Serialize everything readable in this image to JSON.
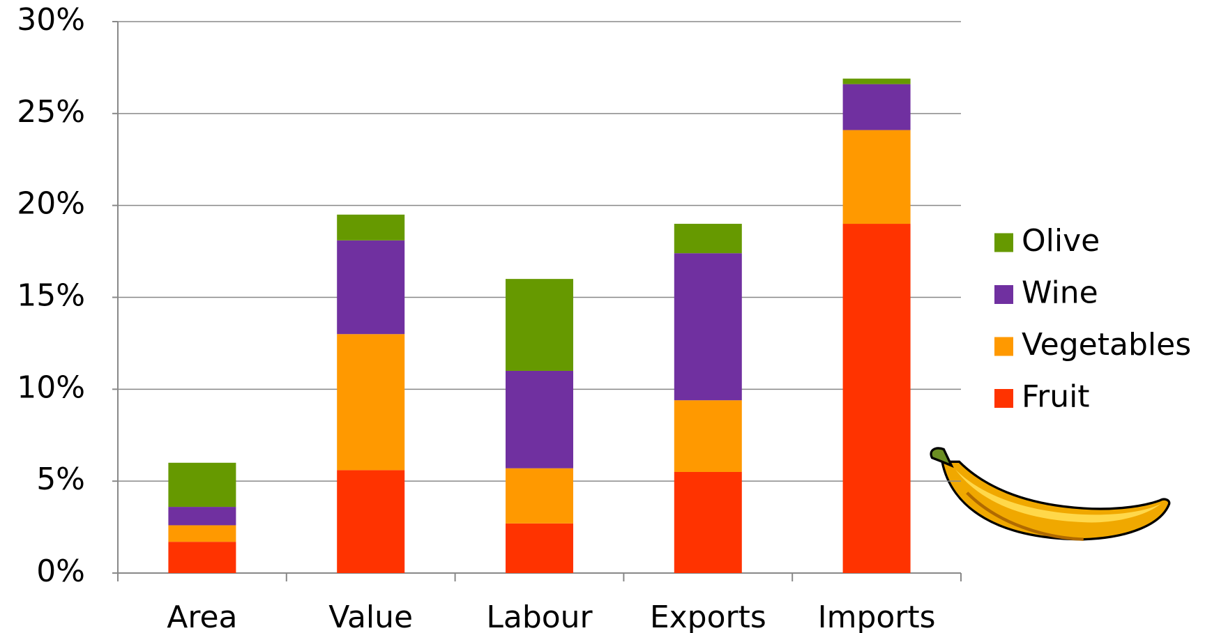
{
  "chart_data": {
    "type": "stacked_bar",
    "categories": [
      "Area",
      "Value",
      "Labour",
      "Exports",
      "Imports"
    ],
    "series": [
      {
        "name": "Fruit",
        "color": "#ff3300",
        "values": [
          1.7,
          5.6,
          2.7,
          5.5,
          19.0
        ]
      },
      {
        "name": "Vegetables",
        "color": "#ff9900",
        "values": [
          0.9,
          7.4,
          3.0,
          3.9,
          5.1
        ]
      },
      {
        "name": "Wine",
        "color": "#7030a0",
        "values": [
          1.0,
          5.1,
          5.3,
          8.0,
          2.5
        ]
      },
      {
        "name": "Olive",
        "color": "#669900",
        "values": [
          2.4,
          1.4,
          5.0,
          1.6,
          0.3
        ]
      }
    ],
    "ylim": [
      0,
      30
    ],
    "yticks": [
      {
        "value": 0,
        "label": "0%"
      },
      {
        "value": 5,
        "label": "5%"
      },
      {
        "value": 10,
        "label": "10%"
      },
      {
        "value": 15,
        "label": "15%"
      },
      {
        "value": 20,
        "label": "20%"
      },
      {
        "value": 25,
        "label": "25%"
      },
      {
        "value": 30,
        "label": "30%"
      }
    ],
    "grid": true,
    "legend": "right"
  }
}
